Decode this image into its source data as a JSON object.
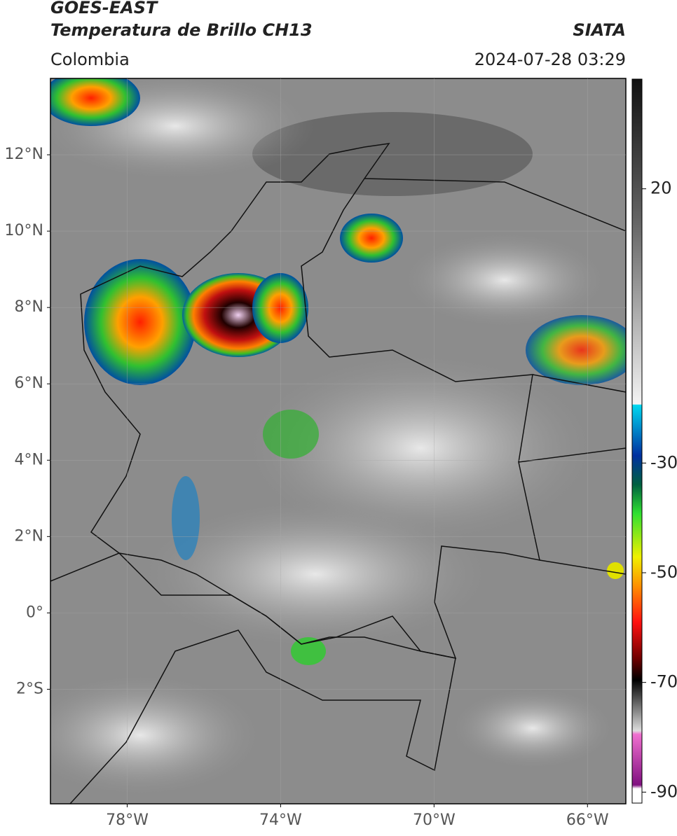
{
  "header": {
    "title": "GOES-EAST",
    "subtitle": "Temperatura de Brillo CH13",
    "region": "Colombia",
    "source": "SIATA",
    "datetime": "2024-07-28 03:29"
  },
  "map": {
    "xlim": [
      -80,
      -65
    ],
    "ylim": [
      -5,
      14
    ],
    "lat_ticks": [
      {
        "value": 12,
        "label": "12°N"
      },
      {
        "value": 10,
        "label": "10°N"
      },
      {
        "value": 8,
        "label": "8°N"
      },
      {
        "value": 6,
        "label": "6°N"
      },
      {
        "value": 4,
        "label": "4°N"
      },
      {
        "value": 2,
        "label": "2°N"
      },
      {
        "value": 0,
        "label": "0°"
      },
      {
        "value": -2,
        "label": "2°S"
      }
    ],
    "lon_ticks": [
      {
        "value": -78,
        "label": "78°W"
      },
      {
        "value": -74,
        "label": "74°W"
      },
      {
        "value": -70,
        "label": "70°W"
      },
      {
        "value": -66,
        "label": "66°W"
      }
    ]
  },
  "colorbar": {
    "lim": [
      -92,
      40
    ],
    "ticks": [
      20,
      -30,
      -50,
      -70,
      -90
    ]
  }
}
